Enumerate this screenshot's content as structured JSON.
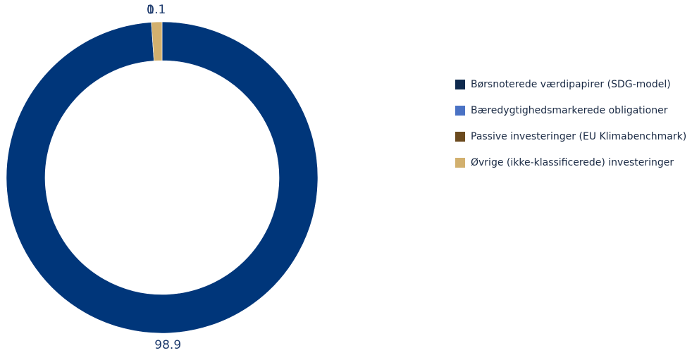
{
  "chart_data": {
    "type": "pie",
    "donut": true,
    "categories": [
      "Børsnoterede værdipapirer (SDG-model)",
      "Bæredygtighedsmarkerede obligationer",
      "Passive investeringer (EU Klimabenchmark)",
      "Øvrige (ikke-klassificerede) investeringer"
    ],
    "values": [
      98.9,
      0,
      0,
      1.1
    ],
    "data_labels": [
      "98.9",
      "0",
      "0",
      "1.1"
    ],
    "colors": [
      "#00367a",
      "#4a72c4",
      "#6b4a1e",
      "#d2b06e"
    ],
    "legend_colors": [
      "#0f2a4e",
      "#4a72c4",
      "#6b4a1e",
      "#d2b06e"
    ],
    "legend_position": "right",
    "title": ""
  }
}
